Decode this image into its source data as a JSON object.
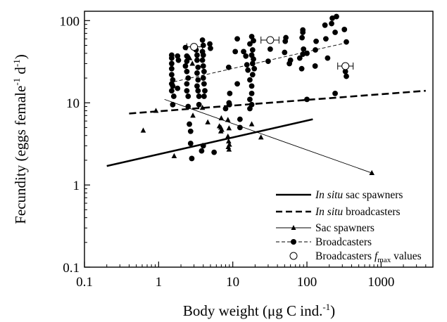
{
  "chart_data": {
    "type": "scatter",
    "x_scale": "log",
    "y_scale": "log",
    "xlim": [
      0.1,
      5000
    ],
    "ylim": [
      0.1,
      130
    ],
    "grid": false,
    "legend_position": "bottom-right",
    "xlabel": {
      "pre": "Body weight (",
      "greek": "μ",
      "mid": "g C ind.",
      "sup": "-1",
      "post": ")"
    },
    "ylabel": {
      "pre": "Fecundity (eggs female",
      "sup1": "-1",
      "mid": " d",
      "sup2": "-1",
      "post": ")"
    },
    "x_ticks": [
      {
        "value": 0.1,
        "label": "0.1"
      },
      {
        "value": 1,
        "label": "1"
      },
      {
        "value": 10,
        "label": "10"
      },
      {
        "value": 100,
        "label": "100"
      },
      {
        "value": 1000,
        "label": "1000"
      }
    ],
    "y_ticks": [
      {
        "value": 0.1,
        "label": "0.1"
      },
      {
        "value": 1,
        "label": "1"
      },
      {
        "value": 10,
        "label": "10"
      },
      {
        "value": 100,
        "label": "100"
      }
    ],
    "series": [
      {
        "name_italic": "In situ",
        "name_rest": " sac spawners",
        "kind": "regression",
        "style": "thick-solid",
        "line": [
          [
            0.2,
            1.7
          ],
          [
            120,
            6.3
          ]
        ]
      },
      {
        "name_italic": "In situ",
        "name_rest": " broadcasters",
        "kind": "regression",
        "style": "thick-dashed",
        "line": [
          [
            0.4,
            7.4
          ],
          [
            4000,
            14.0
          ]
        ]
      },
      {
        "name": "Sac spawners",
        "kind": "points+fit",
        "marker": "triangle",
        "style": "thin-solid",
        "line": [
          [
            1.2,
            11
          ],
          [
            750,
            1.4
          ]
        ],
        "points": [
          [
            0.62,
            4.6
          ],
          [
            0.92,
            8.0
          ],
          [
            1.62,
            2.25
          ],
          [
            2.62,
            35
          ],
          [
            2.85,
            30
          ],
          [
            2.9,
            7.0
          ],
          [
            3.9,
            8.7
          ],
          [
            4.6,
            5.8
          ],
          [
            6.6,
            5.2
          ],
          [
            6.9,
            5.0
          ],
          [
            7.1,
            4.7
          ],
          [
            6.9,
            4.5
          ],
          [
            7.0,
            6.5
          ],
          [
            8.6,
            6.2
          ],
          [
            8.9,
            4.9
          ],
          [
            8.6,
            3.9
          ],
          [
            8.8,
            3.4
          ],
          [
            9.0,
            3.1
          ],
          [
            8.7,
            2.9
          ],
          [
            8.9,
            2.7
          ],
          [
            18,
            5.5
          ],
          [
            24,
            3.8
          ],
          [
            750,
            1.4
          ]
        ]
      },
      {
        "name": "Broadcasters",
        "kind": "points+fit",
        "marker": "circle",
        "style": "thin-dashed",
        "line": [
          [
            1.6,
            18
          ],
          [
            350,
            54
          ]
        ],
        "points": [
          [
            1.5,
            38
          ],
          [
            1.5,
            35
          ],
          [
            1.5,
            30
          ],
          [
            1.5,
            26
          ],
          [
            1.5,
            22
          ],
          [
            1.55,
            19
          ],
          [
            1.5,
            17
          ],
          [
            1.55,
            16
          ],
          [
            1.5,
            14
          ],
          [
            1.6,
            12
          ],
          [
            1.55,
            9.5
          ],
          [
            1.8,
            37
          ],
          [
            1.85,
            33
          ],
          [
            1.8,
            15
          ],
          [
            2.3,
            47
          ],
          [
            2.4,
            37
          ],
          [
            2.4,
            32
          ],
          [
            2.3,
            28
          ],
          [
            2.4,
            24
          ],
          [
            2.5,
            20
          ],
          [
            2.4,
            17
          ],
          [
            2.4,
            14
          ],
          [
            2.5,
            12
          ],
          [
            2.5,
            9.0
          ],
          [
            2.6,
            5.5
          ],
          [
            2.7,
            4.5
          ],
          [
            2.7,
            3.2
          ],
          [
            2.8,
            2.1
          ],
          [
            3.2,
            44
          ],
          [
            3.3,
            38
          ],
          [
            3.3,
            33
          ],
          [
            3.4,
            27
          ],
          [
            3.3,
            23
          ],
          [
            3.4,
            19
          ],
          [
            3.3,
            16
          ],
          [
            3.4,
            14
          ],
          [
            3.5,
            12
          ],
          [
            3.5,
            9.5
          ],
          [
            3.9,
            58
          ],
          [
            4.0,
            50
          ],
          [
            3.9,
            42
          ],
          [
            4.0,
            38
          ],
          [
            3.9,
            33
          ],
          [
            4.0,
            28
          ],
          [
            4.1,
            24
          ],
          [
            4.0,
            20
          ],
          [
            4.1,
            17
          ],
          [
            4.2,
            14
          ],
          [
            4.1,
            12
          ],
          [
            4.0,
            3.0
          ],
          [
            4.9,
            52
          ],
          [
            5.0,
            46
          ],
          [
            3.8,
            2.6
          ],
          [
            5.6,
            2.5
          ],
          [
            8.8,
            27
          ],
          [
            9.1,
            13
          ],
          [
            9.0,
            9.5
          ],
          [
            8.9,
            10
          ],
          [
            8.0,
            8.5
          ],
          [
            11.5,
            60
          ],
          [
            10.8,
            42
          ],
          [
            11.5,
            17
          ],
          [
            12.5,
            6.3
          ],
          [
            12.5,
            5.0
          ],
          [
            14,
            42
          ],
          [
            15,
            37
          ],
          [
            15.5,
            29
          ],
          [
            16,
            25
          ],
          [
            18,
            64
          ],
          [
            19,
            57
          ],
          [
            17,
            52
          ],
          [
            18.5,
            44
          ],
          [
            18,
            38
          ],
          [
            19,
            34
          ],
          [
            18.5,
            30
          ],
          [
            19.5,
            26
          ],
          [
            18.5,
            22
          ],
          [
            17,
            19
          ],
          [
            18,
            16
          ],
          [
            18,
            13
          ],
          [
            17,
            11
          ],
          [
            18,
            9.5
          ],
          [
            17,
            8.5
          ],
          [
            30,
            32
          ],
          [
            32,
            45
          ],
          [
            52,
            62
          ],
          [
            51,
            56
          ],
          [
            50,
            41
          ],
          [
            60,
            33
          ],
          [
            58,
            30
          ],
          [
            88,
            77
          ],
          [
            88,
            72
          ],
          [
            86,
            62
          ],
          [
            90,
            45
          ],
          [
            88,
            39
          ],
          [
            80,
            35
          ],
          [
            85,
            26
          ],
          [
            100,
            11
          ],
          [
            100,
            40
          ],
          [
            133,
            56
          ],
          [
            130,
            44
          ],
          [
            129,
            28
          ],
          [
            175,
            88
          ],
          [
            180,
            60
          ],
          [
            190,
            35
          ],
          [
            220,
            107
          ],
          [
            215,
            92
          ],
          [
            250,
            112
          ],
          [
            240,
            72
          ],
          [
            240,
            13
          ],
          [
            320,
            78
          ],
          [
            330,
            24
          ],
          [
            340,
            21
          ],
          [
            340,
            55
          ]
        ]
      },
      {
        "name_pre": "Broadcasters ",
        "name_italic": "f",
        "name_sub": "max",
        "name_post": " values",
        "kind": "points",
        "marker": "open-circle-errorbar",
        "points": [
          {
            "x": 3.0,
            "y": 48,
            "xerr": [
              2.4,
              3.9
            ]
          },
          {
            "x": 32,
            "y": 58,
            "xerr": [
              24,
              42
            ]
          },
          {
            "x": 330,
            "y": 28,
            "xerr": [
              260,
              420
            ]
          }
        ]
      }
    ]
  }
}
